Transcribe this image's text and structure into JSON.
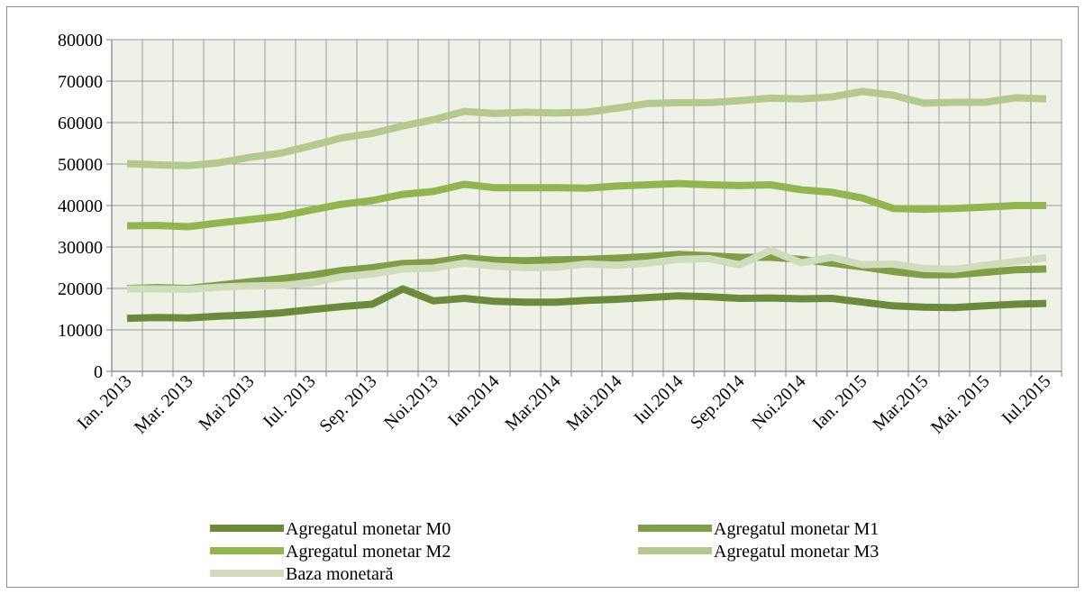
{
  "colors": {
    "plot_background": "#eef1e6",
    "grid": "#9a9a9a",
    "axis": "#7f7f7f"
  },
  "chart_data": {
    "type": "line",
    "title": "",
    "xlabel": "",
    "ylabel": "",
    "ylim": [
      0,
      80000
    ],
    "yticks": [
      "0",
      "10000",
      "20000",
      "30000",
      "40000",
      "50000",
      "60000",
      "70000",
      "80000"
    ],
    "x": [
      "Ian. 2013",
      "Feb. 2013",
      "Mar. 2013",
      "Apr. 2013",
      "Mai 2013",
      "Iun. 2013",
      "Iul. 2013",
      "Aug. 2013",
      "Sep. 2013",
      "Oct. 2013",
      "Noi.2013",
      "Dec. 2013",
      "Ian.2014",
      "Feb.2014",
      "Mar.2014",
      "Apr.2014",
      "Mai.2014",
      "Iun.2014",
      "Iul.2014",
      "Aug.2014",
      "Sep.2014",
      "Oct.2014",
      "Noi.2014",
      "Dec.2014",
      "Ian. 2015",
      "Feb. 2015",
      "Mar.2015",
      "Apr.2015",
      "Mai. 2015",
      "Iun. 2015",
      "Iul.2015"
    ],
    "xtick_labels": [
      "Ian. 2013",
      "Mar. 2013",
      "Mai 2013",
      "Iul. 2013",
      "Sep. 2013",
      "Noi.2013",
      "Ian.2014",
      "Mar.2014",
      "Mai.2014",
      "Iul.2014",
      "Sep.2014",
      "Noi.2014",
      "Ian. 2015",
      "Mar.2015",
      "Mai. 2015",
      "Iul.2015"
    ],
    "legend_position": "bottom",
    "grid": true,
    "series": [
      {
        "name": "Agregatul monetar M0",
        "color": "#6b8a3a",
        "values": [
          12800,
          13000,
          12900,
          13300,
          13600,
          14100,
          14900,
          15600,
          16200,
          19900,
          17000,
          17600,
          16900,
          16700,
          16700,
          17100,
          17400,
          17800,
          18200,
          18000,
          17600,
          17700,
          17500,
          17600,
          16700,
          15800,
          15500,
          15400,
          15800,
          16200,
          16400
        ]
      },
      {
        "name": "Agregatul monetar M1",
        "color": "#7f9e45",
        "values": [
          20000,
          20200,
          20000,
          20800,
          21600,
          22300,
          23200,
          24300,
          25000,
          26000,
          26300,
          27400,
          26800,
          26700,
          26900,
          27000,
          27300,
          27700,
          28200,
          27900,
          27500,
          27500,
          27000,
          26100,
          25200,
          24100,
          23300,
          23300,
          23900,
          24500,
          24700
        ]
      },
      {
        "name": "Agregatul monetar M2",
        "color": "#93b550",
        "values": [
          35100,
          35200,
          34900,
          35800,
          36600,
          37400,
          38900,
          40300,
          41200,
          42700,
          43400,
          45100,
          44300,
          44300,
          44300,
          44200,
          44700,
          45000,
          45300,
          45000,
          44800,
          45000,
          43800,
          43200,
          41800,
          39300,
          39100,
          39300,
          39600,
          40000,
          40000
        ]
      },
      {
        "name": "Agregatul monetar M3",
        "color": "#b4c98e",
        "values": [
          50100,
          49800,
          49600,
          50300,
          51600,
          52600,
          54400,
          56300,
          57400,
          59200,
          60700,
          62700,
          62200,
          62500,
          62300,
          62500,
          63500,
          64600,
          64800,
          64800,
          65300,
          65900,
          65700,
          66200,
          67500,
          66600,
          64700,
          64900,
          64900,
          66000,
          65700
        ]
      },
      {
        "name": "Baza monetară",
        "color": "#d0dcbb",
        "values": [
          19900,
          19900,
          19800,
          20300,
          20600,
          20700,
          21300,
          22800,
          23500,
          24700,
          24900,
          26100,
          25400,
          25000,
          25100,
          25900,
          25600,
          26100,
          27000,
          27200,
          25700,
          29200,
          26200,
          27500,
          25700,
          25900,
          24800,
          24600,
          25600,
          26500,
          27400
        ]
      }
    ]
  }
}
